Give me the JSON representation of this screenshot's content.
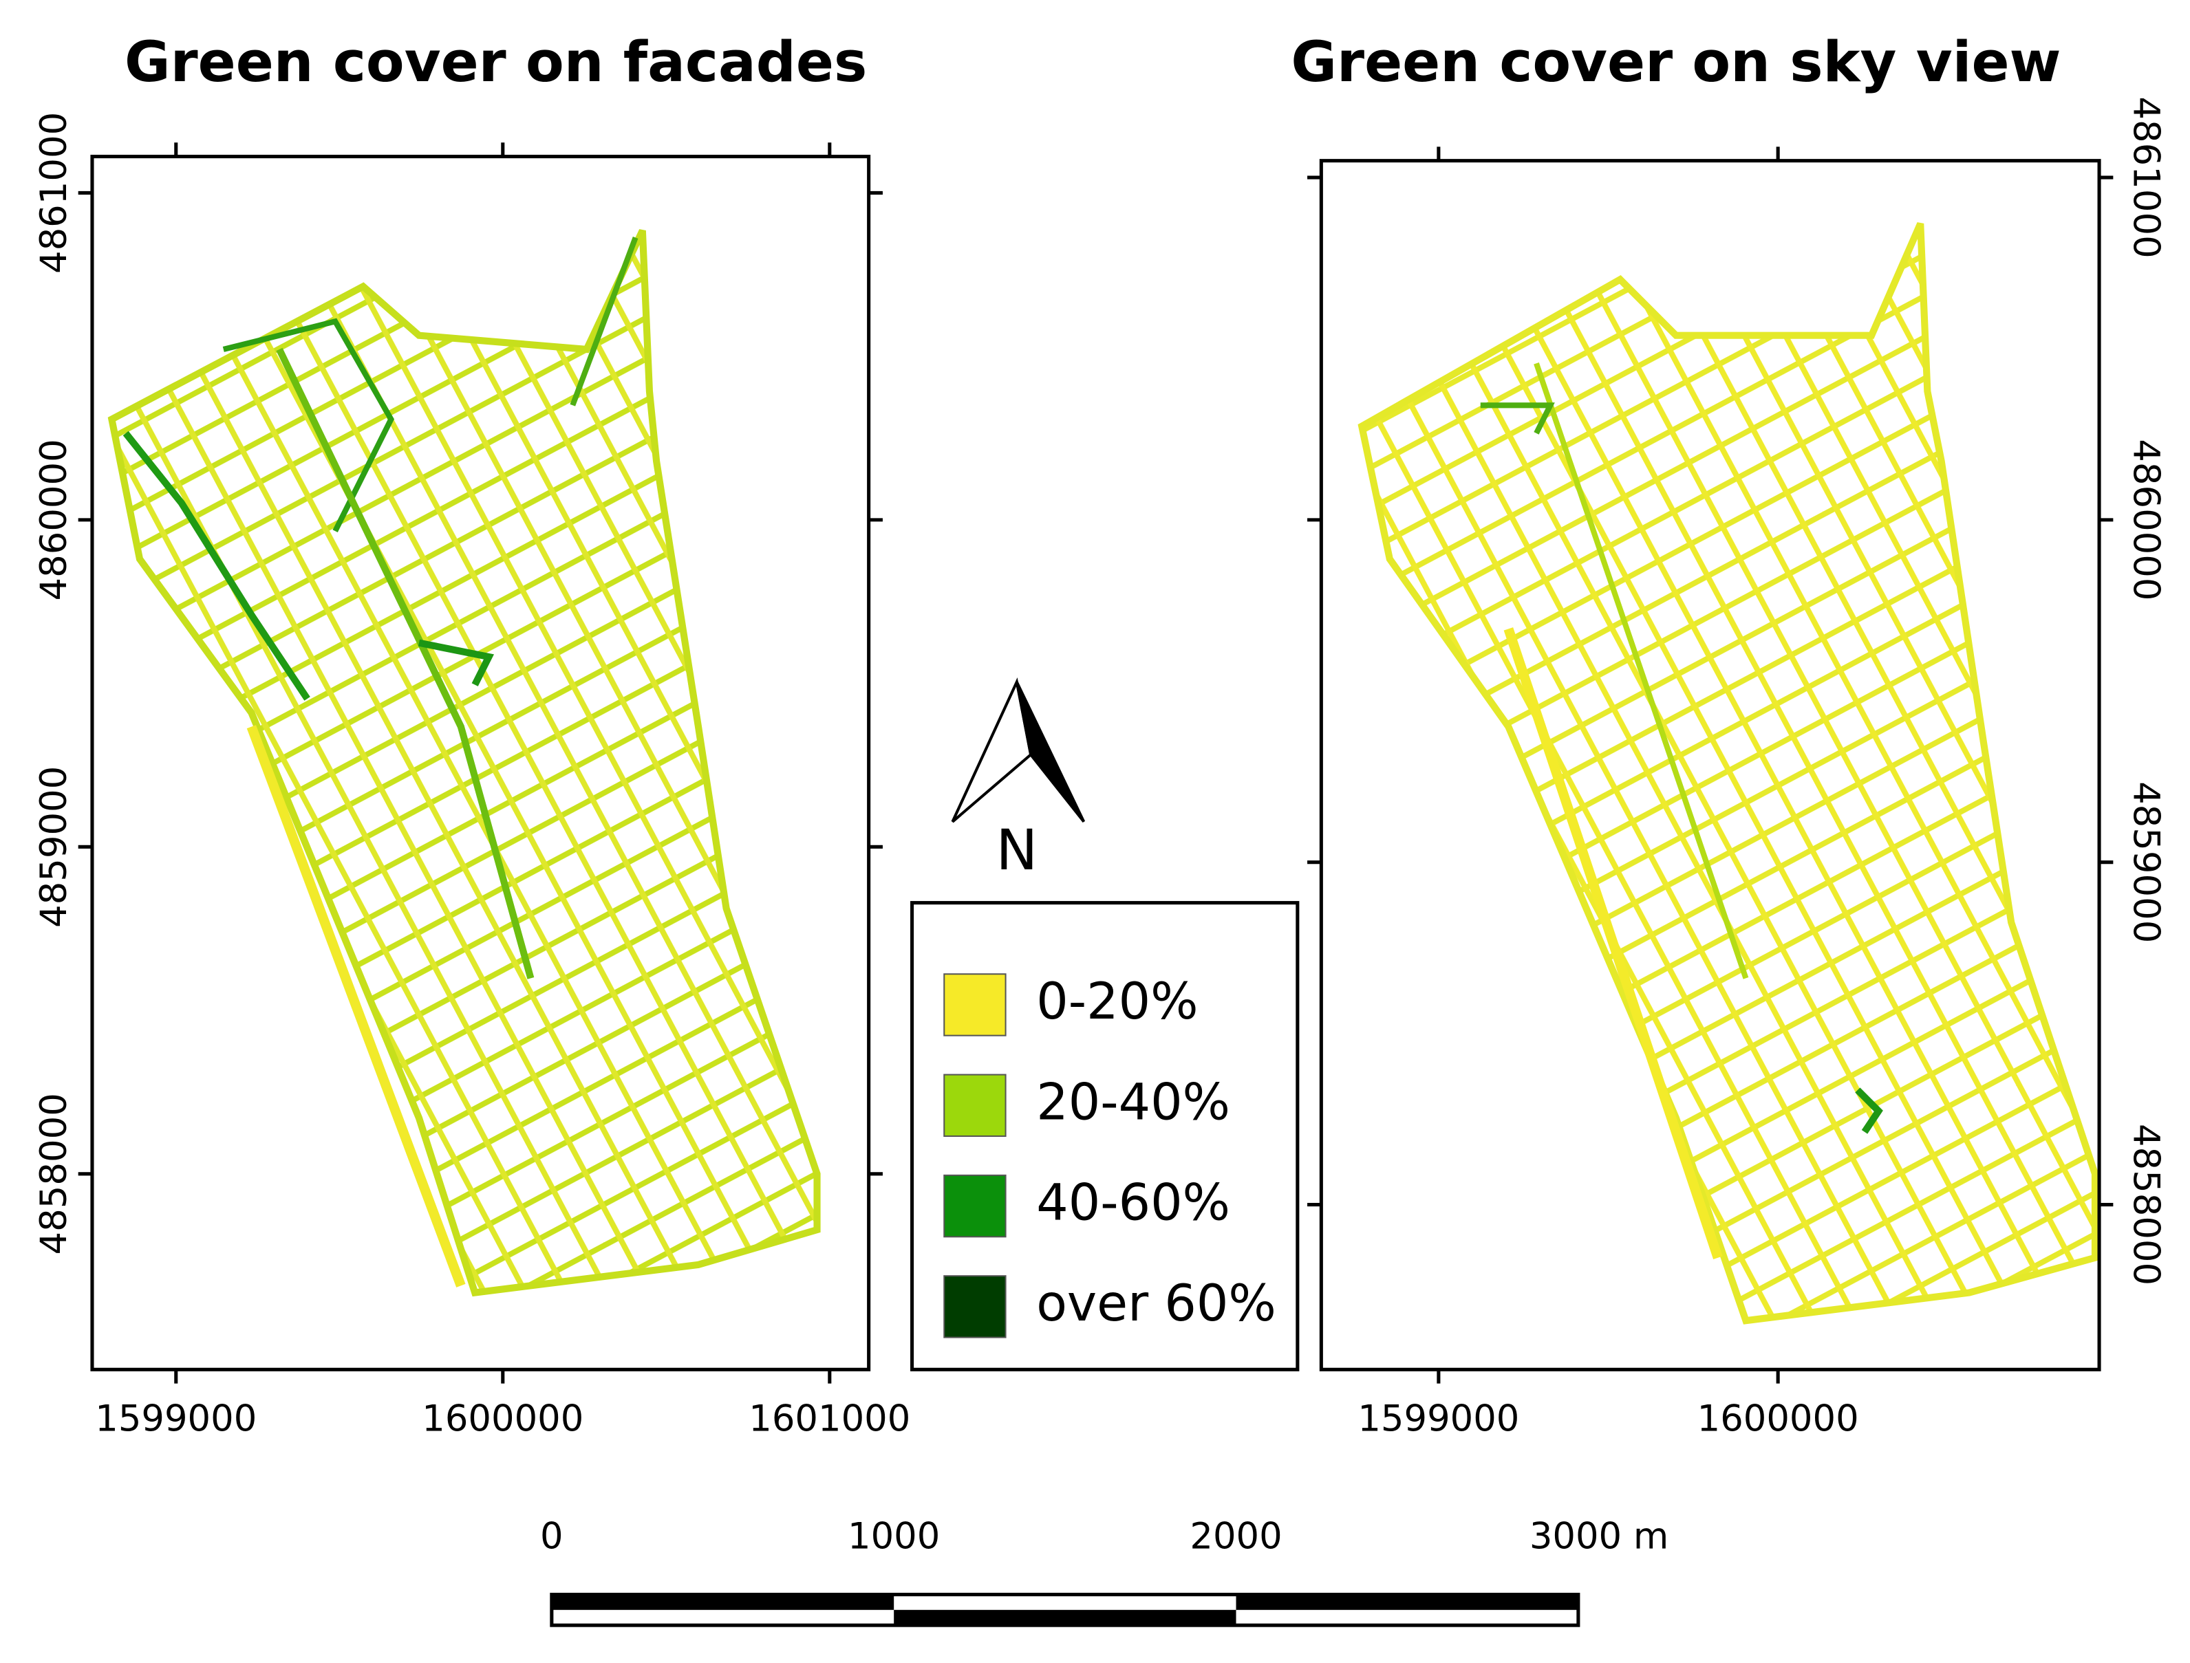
{
  "panels": [
    {
      "title": "Green cover on facades",
      "x_ticks": [
        "1599000",
        "1600000",
        "1601000"
      ],
      "y_ticks": [
        "4861000",
        "4860000",
        "4859000",
        "4858000"
      ]
    },
    {
      "title": "Green cover on sky view",
      "x_ticks": [
        "1599000",
        "1600000"
      ],
      "y_ticks": [
        "4861000",
        "4860000",
        "4859000",
        "4858000"
      ]
    }
  ],
  "north_arrow": "N",
  "legend": [
    {
      "label": "0-20%",
      "color": "#f6ea28"
    },
    {
      "label": "20-40%",
      "color": "#9cd80c"
    },
    {
      "label": "40-60%",
      "color": "#0b900b"
    },
    {
      "label": "over 60%",
      "color": "#003d00"
    }
  ],
  "scale_bar": [
    "0",
    "1000",
    "2000",
    "3000 m"
  ]
}
